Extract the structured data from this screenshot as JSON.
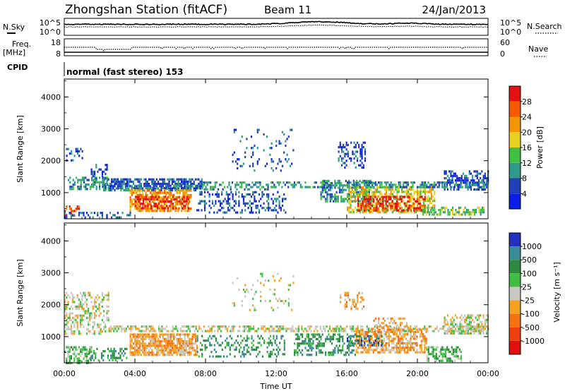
{
  "header": {
    "station": "Zhongshan Station (fitACF)",
    "beam": "Beam 11",
    "date": "24/Jan/2013"
  },
  "labels": {
    "nsky": "N.Sky",
    "nsearch": "N.Search",
    "freq": "Freq.",
    "mhz": "[MHz]",
    "nave": "Nave",
    "cpid": "CPID",
    "mode": "normal (fast stereo) 153",
    "xlabel": "Time UT",
    "ylabel": "Slant Range [km]",
    "power_label": "Power [dB]",
    "velocity_label": "Velocity [m s⁻¹]"
  },
  "ticks": {
    "noise_left": [
      "10^5",
      "10^0"
    ],
    "noise_right": [
      "10^5",
      "10^0"
    ],
    "freq_left": [
      "18",
      "8"
    ],
    "freq_right": [
      "60",
      "0"
    ],
    "range": [
      "1000",
      "2000",
      "3000",
      "4000"
    ],
    "time": [
      "00:00",
      "04:00",
      "08:00",
      "12:00",
      "16:00",
      "20:00",
      "00:00"
    ]
  },
  "colors": {
    "power": [
      "#0a1fe6",
      "#2040b8",
      "#2f9a8c",
      "#40c040",
      "#e8d020",
      "#f49400",
      "#f55a00",
      "#e61010"
    ],
    "velocity": [
      "#2030c0",
      "#3a8a9a",
      "#2e8a40",
      "#3ec03e",
      "#c8c8c0",
      "#f4a020",
      "#f47010",
      "#f04010",
      "#e01010"
    ],
    "gray": "#c8c8c0"
  },
  "power_scale": [
    "4",
    "8",
    "12",
    "16",
    "20",
    "24",
    "28"
  ],
  "velocity_scale": [
    "-1000",
    "-500",
    "-100",
    "-25",
    "25",
    "100",
    "500",
    "1000"
  ],
  "chart_data": {
    "type": "heatmap",
    "x_unit": "hours UT",
    "xlim": [
      0,
      24
    ],
    "ylim": [
      180,
      4560
    ],
    "power": {
      "blobs": [
        {
          "x": [
            0.2,
            2.4
          ],
          "y": [
            1100,
            1500
          ],
          "level": 2,
          "density": 0.55
        },
        {
          "x": [
            0.1,
            1.0
          ],
          "y": [
            2000,
            2400
          ],
          "level": 1,
          "density": 0.4
        },
        {
          "x": [
            1.5,
            2.4
          ],
          "y": [
            1400,
            1900
          ],
          "level": 1,
          "density": 0.3
        },
        {
          "x": [
            2.2,
            7.8
          ],
          "y": [
            1150,
            1450
          ],
          "level": 1,
          "density": 0.7
        },
        {
          "x": [
            2.2,
            7.8
          ],
          "y": [
            1100,
            1250
          ],
          "level": 2,
          "density": 0.5
        },
        {
          "x": [
            3.7,
            7.2
          ],
          "y": [
            400,
            1100
          ],
          "level": 5,
          "density": 0.7
        },
        {
          "x": [
            4.0,
            7.0
          ],
          "y": [
            500,
            900
          ],
          "level": 7,
          "density": 0.45
        },
        {
          "x": [
            0.0,
            0.8
          ],
          "y": [
            250,
            600
          ],
          "level": 6,
          "density": 0.5
        },
        {
          "x": [
            0.0,
            3.7
          ],
          "y": [
            200,
            400
          ],
          "level": 1,
          "density": 0.35
        },
        {
          "x": [
            7.8,
            11.5
          ],
          "y": [
            1100,
            1350
          ],
          "level": 2,
          "density": 0.45
        },
        {
          "x": [
            7.3,
            12.5
          ],
          "y": [
            350,
            1050
          ],
          "level": 1,
          "density": 0.3
        },
        {
          "x": [
            11.5,
            15.0
          ],
          "y": [
            1150,
            1350
          ],
          "level": 2,
          "density": 0.45
        },
        {
          "x": [
            14.5,
            17.5
          ],
          "y": [
            700,
            1400
          ],
          "level": 2,
          "density": 0.55
        },
        {
          "x": [
            15.5,
            17.0
          ],
          "y": [
            1800,
            2600
          ],
          "level": 1,
          "density": 0.35
        },
        {
          "x": [
            16.0,
            21.0
          ],
          "y": [
            400,
            1200
          ],
          "level": 4,
          "density": 0.6
        },
        {
          "x": [
            16.6,
            20.4
          ],
          "y": [
            450,
            900
          ],
          "level": 7,
          "density": 0.5
        },
        {
          "x": [
            20.2,
            23.8
          ],
          "y": [
            280,
            560
          ],
          "level": 3,
          "density": 0.55
        },
        {
          "x": [
            21.5,
            24.0
          ],
          "y": [
            1100,
            1700
          ],
          "level": 1,
          "density": 0.5
        },
        {
          "x": [
            16.0,
            24.0
          ],
          "y": [
            1150,
            1350
          ],
          "level": 2,
          "density": 0.55
        },
        {
          "x": [
            9.5,
            13.0
          ],
          "y": [
            1700,
            3000
          ],
          "level": 1,
          "density": 0.12
        }
      ]
    },
    "velocity": {
      "blobs": [
        {
          "x": [
            0.0,
            2.5
          ],
          "y": [
            1100,
            2400
          ],
          "level": 4,
          "density": 0.4
        },
        {
          "x": [
            0.0,
            1.5
          ],
          "y": [
            200,
            700
          ],
          "level": 3,
          "density": 0.6
        },
        {
          "x": [
            1.2,
            3.5
          ],
          "y": [
            250,
            650
          ],
          "level": 2,
          "density": 0.35
        },
        {
          "x": [
            3.7,
            7.5
          ],
          "y": [
            450,
            1100
          ],
          "level": 5,
          "density": 0.8
        },
        {
          "x": [
            2.5,
            24.0
          ],
          "y": [
            1150,
            1350
          ],
          "level": 4,
          "density": 0.55
        },
        {
          "x": [
            7.5,
            12.5
          ],
          "y": [
            350,
            1050
          ],
          "level": 2,
          "density": 0.3
        },
        {
          "x": [
            13.0,
            16.5
          ],
          "y": [
            400,
            1100
          ],
          "level": 2,
          "density": 0.45
        },
        {
          "x": [
            16.5,
            20.5
          ],
          "y": [
            500,
            1250
          ],
          "level": 5,
          "density": 0.65
        },
        {
          "x": [
            17.5,
            19.5
          ],
          "y": [
            1300,
            1600
          ],
          "level": 5,
          "density": 0.4
        },
        {
          "x": [
            16.0,
            18.0
          ],
          "y": [
            750,
            1050
          ],
          "level": 1,
          "density": 0.35
        },
        {
          "x": [
            20.5,
            22.5
          ],
          "y": [
            250,
            700
          ],
          "level": 3,
          "density": 0.6
        },
        {
          "x": [
            21.5,
            24.0
          ],
          "y": [
            1100,
            1700
          ],
          "level": 4,
          "density": 0.5
        },
        {
          "x": [
            15.6,
            17.0
          ],
          "y": [
            1900,
            2400
          ],
          "level": 5,
          "density": 0.35
        },
        {
          "x": [
            9.5,
            13.0
          ],
          "y": [
            1800,
            3000
          ],
          "level": 4,
          "density": 0.1
        }
      ]
    }
  }
}
